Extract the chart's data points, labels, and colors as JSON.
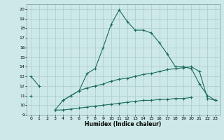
{
  "title": "",
  "xlabel": "Humidex (Indice chaleur)",
  "xlim": [
    -0.5,
    23.5
  ],
  "ylim": [
    9,
    20.5
  ],
  "xticks": [
    0,
    1,
    2,
    3,
    4,
    5,
    6,
    7,
    8,
    9,
    10,
    11,
    12,
    13,
    14,
    15,
    16,
    17,
    18,
    19,
    20,
    21,
    22,
    23
  ],
  "yticks": [
    9,
    10,
    11,
    12,
    13,
    14,
    15,
    16,
    17,
    18,
    19,
    20
  ],
  "bg_color": "#cde8e8",
  "line_color": "#1a6b5a",
  "grid_color": "#aacccc",
  "line1_y": [
    13.0,
    12.0,
    null,
    9.5,
    10.5,
    11.0,
    11.5,
    13.3,
    13.8,
    16.0,
    18.4,
    19.9,
    18.7,
    17.8,
    17.8,
    17.5,
    16.5,
    15.3,
    14.0,
    14.0,
    13.8,
    12.2,
    11.0,
    10.5
  ],
  "line2_y": [
    11.0,
    null,
    null,
    null,
    10.5,
    11.0,
    11.5,
    11.8,
    12.0,
    12.2,
    12.5,
    12.7,
    12.8,
    13.0,
    13.2,
    13.3,
    13.5,
    13.7,
    13.8,
    13.9,
    14.0,
    13.5,
    10.7,
    10.5
  ],
  "line3_y": [
    null,
    null,
    null,
    9.5,
    9.5,
    9.6,
    9.7,
    9.8,
    9.9,
    10.0,
    10.1,
    10.2,
    10.3,
    10.4,
    10.5,
    10.5,
    10.6,
    10.6,
    10.7,
    10.7,
    10.8,
    null,
    null,
    10.5
  ]
}
